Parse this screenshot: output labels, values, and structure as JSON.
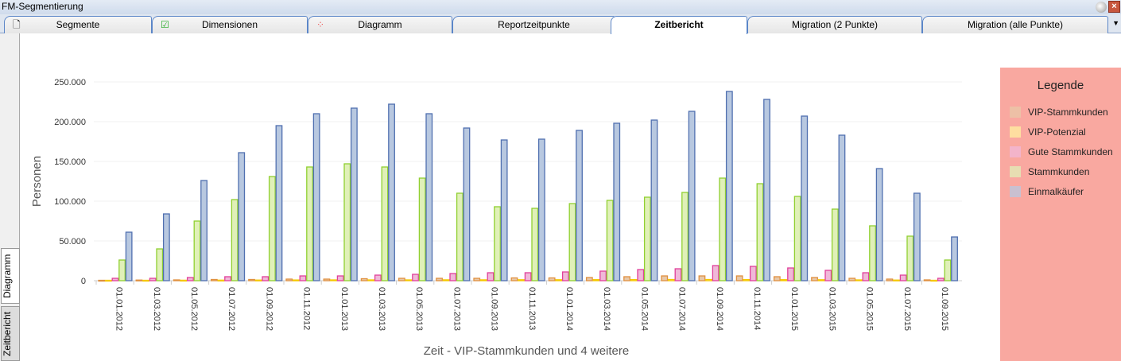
{
  "window": {
    "title": "FM-Segmentierung",
    "close_label": "×"
  },
  "tabs": [
    {
      "label": "Segmente",
      "icon": "document-icon"
    },
    {
      "label": "Dimensionen",
      "icon": "checkbox-icon"
    },
    {
      "label": "Diagramm",
      "icon": "dots-icon"
    },
    {
      "label": "Reportzeitpunkte"
    },
    {
      "label": "Zeitbericht",
      "active": true
    },
    {
      "label": "Migration (2 Punkte)"
    },
    {
      "label": "Migration (alle Punkte)"
    }
  ],
  "side_tabs": [
    "Diagramm",
    "Zeitbericht"
  ],
  "legend": {
    "title": "Legende"
  },
  "chart_data": {
    "type": "bar",
    "xlabel": "Zeit - VIP-Stammkunden und 4 weitere",
    "ylabel": "Personen",
    "ylim": [
      0,
      250000
    ],
    "yticks": [
      "0",
      "50.000",
      "100.000",
      "150.000",
      "200.000",
      "250.000"
    ],
    "categories": [
      "01.01.2012",
      "01.03.2012",
      "01.05.2012",
      "01.07.2012",
      "01.09.2012",
      "01.11.2012",
      "01.01.2013",
      "01.03.2013",
      "01.05.2013",
      "01.07.2013",
      "01.09.2013",
      "01.11.2013",
      "01.01.2014",
      "01.03.2014",
      "01.05.2014",
      "01.07.2014",
      "01.09.2014",
      "01.11.2014",
      "01.01.2015",
      "01.03.2015",
      "01.05.2015",
      "01.07.2015",
      "01.09.2015"
    ],
    "series": [
      {
        "name": "VIP-Stammkunden",
        "color": "#e8c8a8",
        "stroke": "#e09040",
        "values": [
          500,
          800,
          1000,
          1500,
          1500,
          2000,
          2000,
          2500,
          3000,
          3000,
          3000,
          3500,
          3500,
          4000,
          5000,
          6000,
          6000,
          6000,
          5000,
          4000,
          3000,
          2000,
          1000
        ]
      },
      {
        "name": "VIP-Potenzial",
        "color": "#fff0a0",
        "stroke": "#f5c800",
        "values": [
          500,
          500,
          600,
          700,
          800,
          900,
          1000,
          1000,
          1000,
          1100,
          1100,
          1200,
          1200,
          1300,
          1400,
          1500,
          1500,
          1400,
          1300,
          1200,
          1000,
          800,
          500
        ]
      },
      {
        "name": "Gute Stammkunden",
        "color": "#f0b8d8",
        "stroke": "#e0409a",
        "values": [
          3000,
          3000,
          4000,
          5000,
          5000,
          6000,
          6000,
          7000,
          8000,
          9000,
          10000,
          10000,
          11000,
          12000,
          14000,
          15000,
          19000,
          18000,
          16000,
          13000,
          10000,
          7000,
          3000
        ]
      },
      {
        "name": "Stammkunden",
        "color": "#e0f0b8",
        "stroke": "#90d030",
        "values": [
          26000,
          40000,
          75000,
          102000,
          131000,
          143000,
          147000,
          143000,
          129000,
          110000,
          93000,
          91000,
          97000,
          101000,
          105000,
          111000,
          129000,
          122000,
          106000,
          90000,
          69000,
          56000,
          26000
        ]
      },
      {
        "name": "Einmalkäufer",
        "color": "#b8c8e0",
        "stroke": "#5070b0",
        "values": [
          61000,
          84000,
          126000,
          161000,
          195000,
          210000,
          217000,
          222000,
          210000,
          192000,
          177000,
          178000,
          189000,
          198000,
          202000,
          213000,
          238000,
          228000,
          207000,
          183000,
          141000,
          110000,
          55000
        ]
      }
    ]
  }
}
